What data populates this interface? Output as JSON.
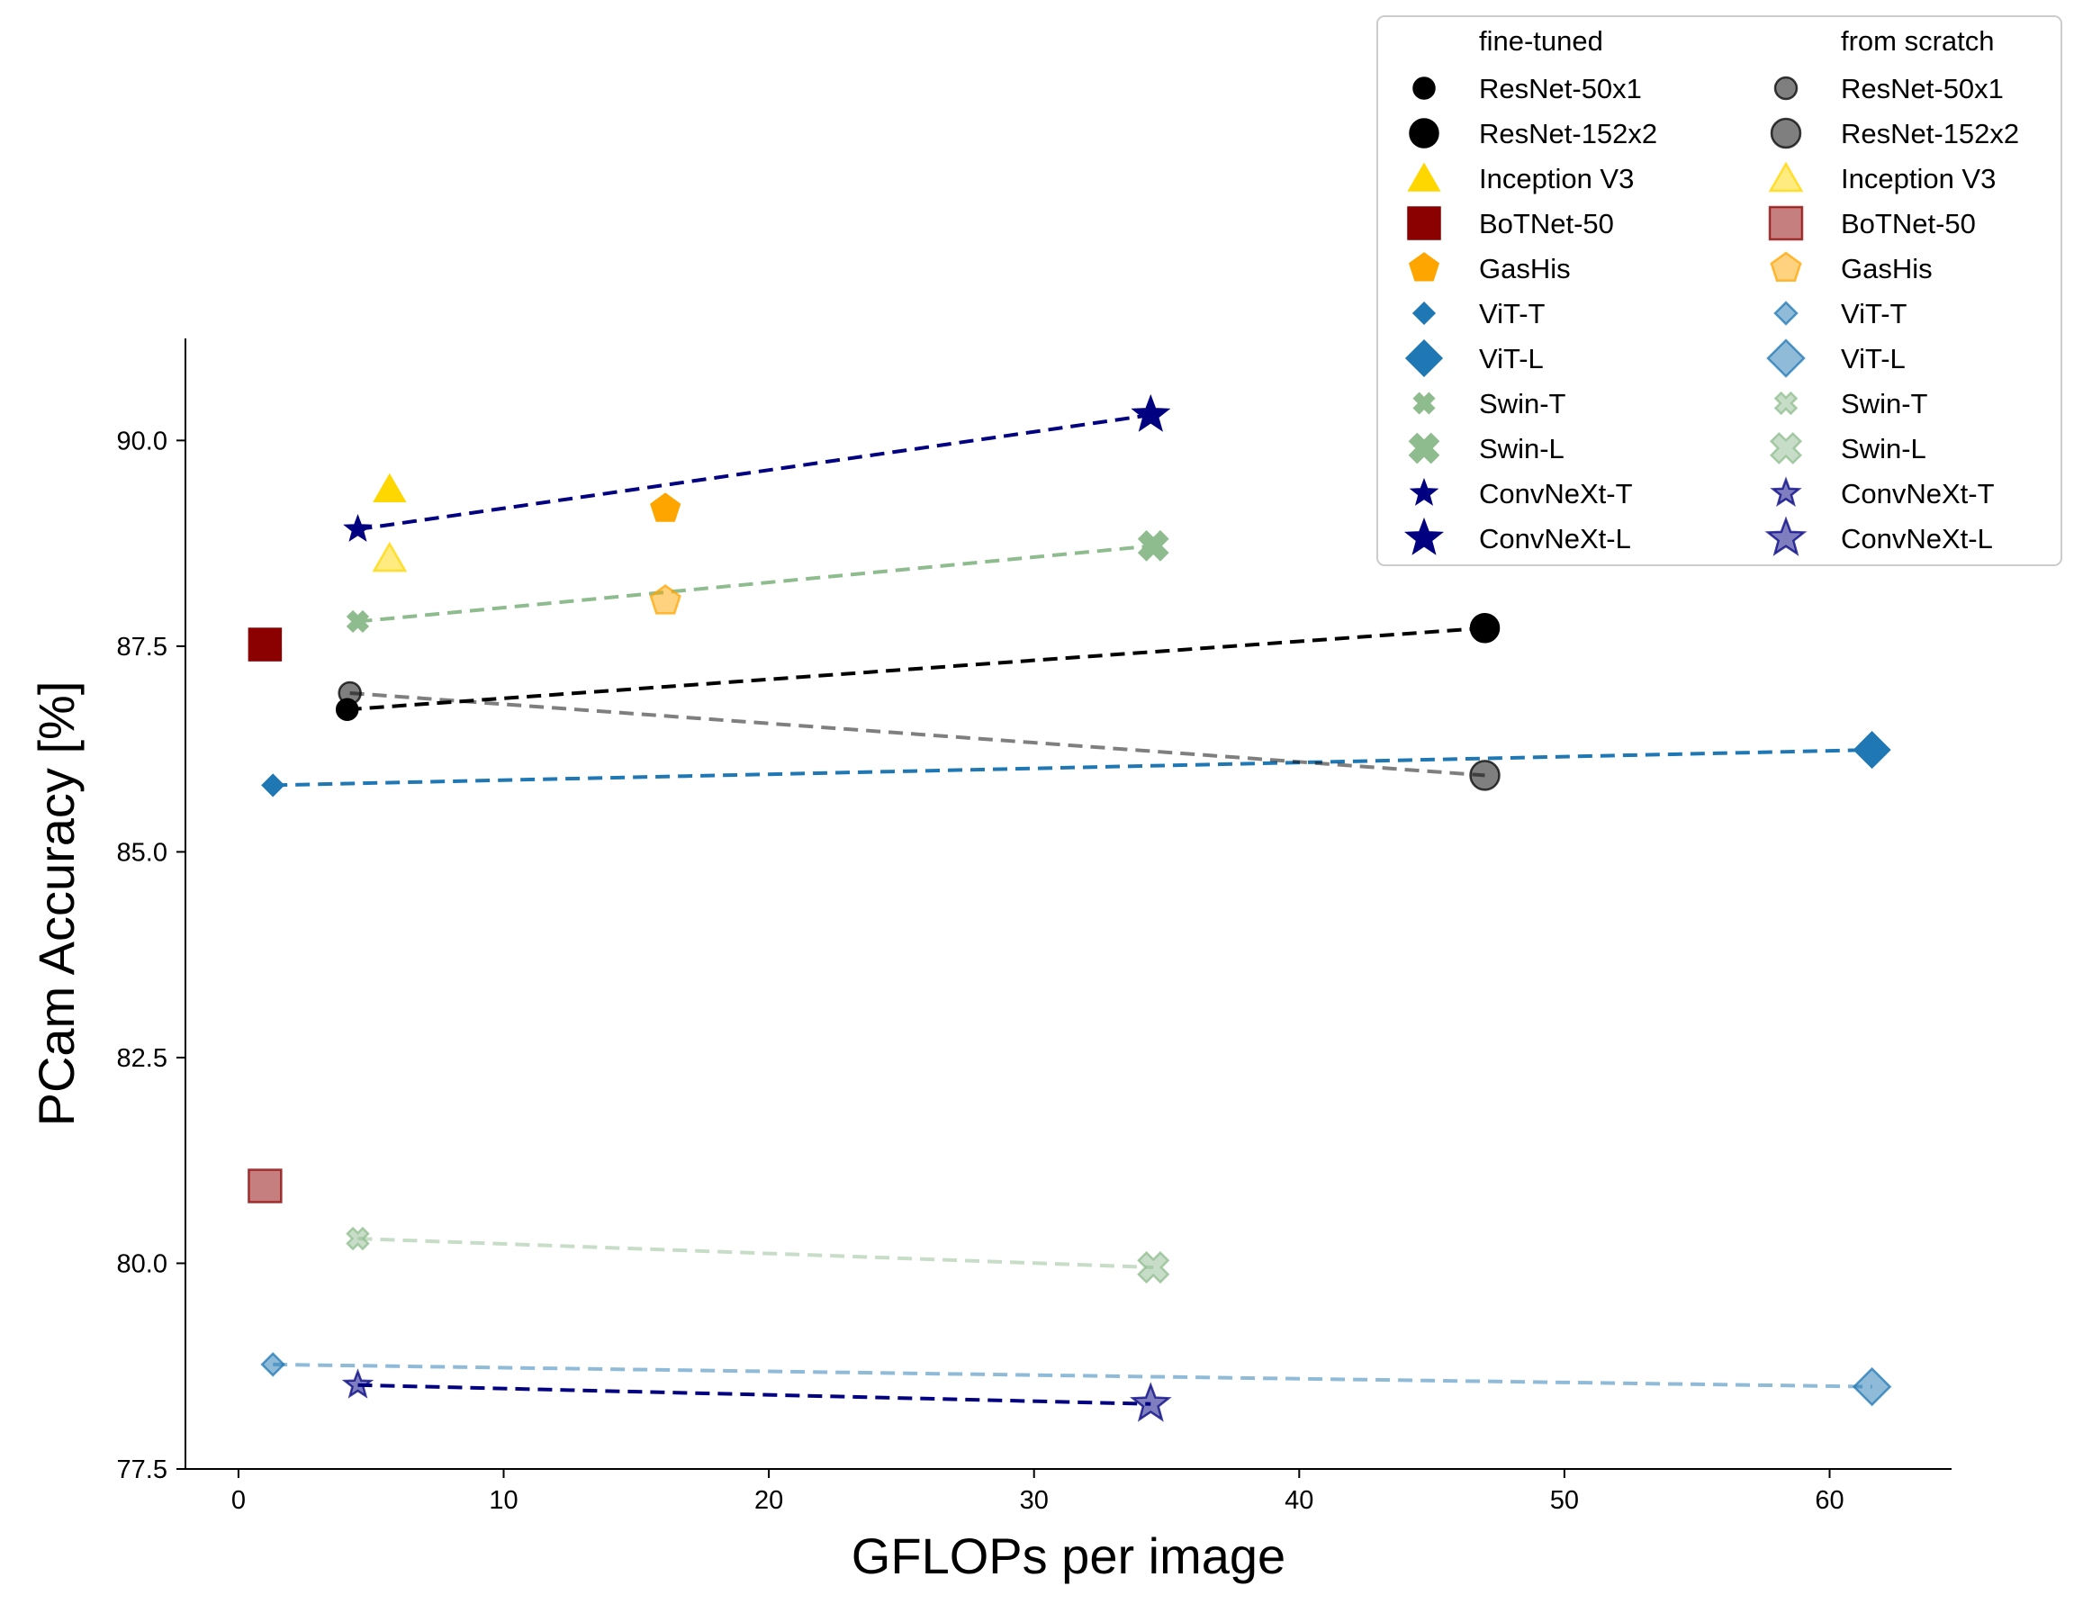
{
  "chart_data": {
    "type": "scatter",
    "xlabel": "GFLOPs per image",
    "ylabel": "PCam Accuracy [%]",
    "xlim": [
      -2.0,
      64.6
    ],
    "ylim": [
      77.5,
      91.24
    ],
    "xticks": [
      0,
      10,
      20,
      30,
      40,
      50,
      60
    ],
    "xtick_labels": [
      "0",
      "10",
      "20",
      "30",
      "40",
      "50",
      "60"
    ],
    "yticks": [
      77.5,
      80.0,
      82.5,
      85.0,
      87.5,
      90.0
    ],
    "ytick_labels": [
      "77.5",
      "80.0",
      "82.5",
      "85.0",
      "87.5",
      "90.0"
    ],
    "grid": false,
    "legend_placement": "top-right",
    "legend_columns": [
      {
        "title": "fine-tuned",
        "group": "fine-tuned"
      },
      {
        "title": "from scratch",
        "group": "from scratch"
      }
    ],
    "series": [
      {
        "name": "ResNet-50x1",
        "group": "fine-tuned",
        "marker": "circle",
        "size": "small",
        "color": "#000000",
        "alpha": 1.0,
        "x": [
          4.1
        ],
        "y": [
          86.73
        ]
      },
      {
        "name": "ResNet-152x2",
        "group": "fine-tuned",
        "marker": "circle",
        "size": "large",
        "color": "#000000",
        "alpha": 1.0,
        "x": [
          47.0
        ],
        "y": [
          87.72
        ]
      },
      {
        "name": "Inception V3",
        "group": "fine-tuned",
        "marker": "triangle",
        "size": "large",
        "color": "#FFD700",
        "alpha": 1.0,
        "x": [
          5.7
        ],
        "y": [
          89.41
        ]
      },
      {
        "name": "BoTNet-50",
        "group": "fine-tuned",
        "marker": "square",
        "size": "large",
        "color": "#8B0000",
        "alpha": 1.0,
        "x": [
          1.0
        ],
        "y": [
          87.52
        ]
      },
      {
        "name": "GasHis",
        "group": "fine-tuned",
        "marker": "pentagon",
        "size": "large",
        "color": "#FFA500",
        "alpha": 1.0,
        "x": [
          16.1
        ],
        "y": [
          89.17
        ]
      },
      {
        "name": "ViT-T",
        "group": "fine-tuned",
        "marker": "diamond",
        "size": "small",
        "color": "#1F77B4",
        "alpha": 1.0,
        "x": [
          1.3
        ],
        "y": [
          85.81
        ]
      },
      {
        "name": "ViT-L",
        "group": "fine-tuned",
        "marker": "diamond",
        "size": "large",
        "color": "#1F77B4",
        "alpha": 1.0,
        "x": [
          61.6
        ],
        "y": [
          86.24
        ]
      },
      {
        "name": "Swin-T",
        "group": "fine-tuned",
        "marker": "cross",
        "size": "small",
        "color": "#8FBC8F",
        "alpha": 1.0,
        "x": [
          4.5
        ],
        "y": [
          87.8
        ]
      },
      {
        "name": "Swin-L",
        "group": "fine-tuned",
        "marker": "cross",
        "size": "large",
        "color": "#8FBC8F",
        "alpha": 1.0,
        "x": [
          34.5
        ],
        "y": [
          88.72
        ]
      },
      {
        "name": "ConvNeXt-T",
        "group": "fine-tuned",
        "marker": "star",
        "size": "small",
        "color": "#000080",
        "alpha": 1.0,
        "x": [
          4.5
        ],
        "y": [
          88.92
        ]
      },
      {
        "name": "ConvNeXt-L",
        "group": "fine-tuned",
        "marker": "star",
        "size": "large",
        "color": "#000080",
        "alpha": 1.0,
        "x": [
          34.4
        ],
        "y": [
          90.31
        ]
      },
      {
        "name": "ResNet-50x1",
        "group": "from scratch",
        "marker": "circle",
        "size": "small",
        "color": "#000000",
        "alpha": 0.5,
        "x": [
          4.2
        ],
        "y": [
          86.93
        ]
      },
      {
        "name": "ResNet-152x2",
        "group": "from scratch",
        "marker": "circle",
        "size": "large",
        "color": "#000000",
        "alpha": 0.5,
        "x": [
          47.0
        ],
        "y": [
          85.93
        ]
      },
      {
        "name": "Inception V3",
        "group": "from scratch",
        "marker": "triangle",
        "size": "large",
        "color": "#FFD700",
        "alpha": 0.5,
        "x": [
          5.7
        ],
        "y": [
          88.57
        ]
      },
      {
        "name": "BoTNet-50",
        "group": "from scratch",
        "marker": "square",
        "size": "large",
        "color": "#8B0000",
        "alpha": 0.5,
        "x": [
          1.0
        ],
        "y": [
          80.94
        ]
      },
      {
        "name": "GasHis",
        "group": "from scratch",
        "marker": "pentagon",
        "size": "large",
        "color": "#FFA500",
        "alpha": 0.5,
        "x": [
          16.1
        ],
        "y": [
          88.05
        ]
      },
      {
        "name": "ViT-T",
        "group": "from scratch",
        "marker": "diamond",
        "size": "small",
        "color": "#1F77B4",
        "alpha": 0.5,
        "x": [
          1.3
        ],
        "y": [
          78.77
        ]
      },
      {
        "name": "ViT-L",
        "group": "from scratch",
        "marker": "diamond",
        "size": "large",
        "color": "#1F77B4",
        "alpha": 0.5,
        "x": [
          61.6
        ],
        "y": [
          78.5
        ]
      },
      {
        "name": "Swin-T",
        "group": "from scratch",
        "marker": "cross",
        "size": "small",
        "color": "#8FBC8F",
        "alpha": 0.5,
        "x": [
          4.5
        ],
        "y": [
          80.3
        ]
      },
      {
        "name": "Swin-L",
        "group": "from scratch",
        "marker": "cross",
        "size": "large",
        "color": "#8FBC8F",
        "alpha": 0.5,
        "x": [
          34.5
        ],
        "y": [
          79.95
        ]
      },
      {
        "name": "ConvNeXt-T",
        "group": "from scratch",
        "marker": "star",
        "size": "small",
        "color": "#000080",
        "alpha": 0.5,
        "x": [
          4.5
        ],
        "y": [
          78.52
        ]
      },
      {
        "name": "ConvNeXt-L",
        "group": "from scratch",
        "marker": "star",
        "size": "large",
        "color": "#000080",
        "alpha": 0.5,
        "x": [
          34.4
        ],
        "y": [
          78.29
        ]
      }
    ],
    "dashed_lines": [
      {
        "from": "ConvNeXt-T",
        "to": "ConvNeXt-L",
        "group": "fine-tuned",
        "color": "#000080",
        "alpha": 1.0
      },
      {
        "from": "Swin-T",
        "to": "Swin-L",
        "group": "fine-tuned",
        "color": "#8FBC8F",
        "alpha": 1.0
      },
      {
        "from": "ResNet-50x1",
        "to": "ResNet-152x2",
        "group": "fine-tuned",
        "color": "#000000",
        "alpha": 1.0
      },
      {
        "from": "ViT-T",
        "to": "ViT-L",
        "group": "fine-tuned",
        "color": "#1F77B4",
        "alpha": 1.0
      },
      {
        "from": "ResNet-50x1",
        "to": "ResNet-152x2",
        "group": "from scratch",
        "color": "#000000",
        "alpha": 0.5
      },
      {
        "from": "Swin-T",
        "to": "Swin-L",
        "group": "from scratch",
        "color": "#8FBC8F",
        "alpha": 0.5
      },
      {
        "from": "ViT-T",
        "to": "ViT-L",
        "group": "from scratch",
        "color": "#1F77B4",
        "alpha": 0.5
      },
      {
        "from": "ConvNeXt-T",
        "to": "ConvNeXt-L",
        "group": "from scratch",
        "color": "#000080",
        "alpha": 1.0
      }
    ]
  }
}
